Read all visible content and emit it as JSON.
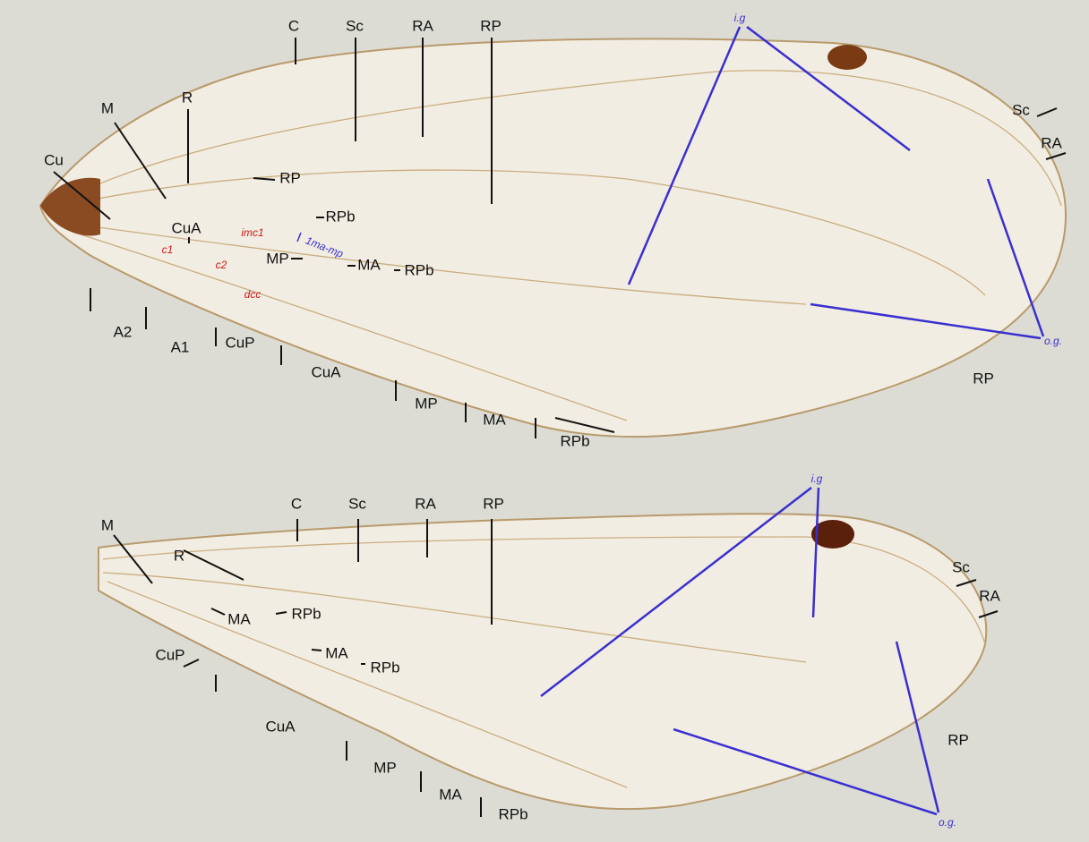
{
  "forewing": {
    "labels": [
      "C",
      "Sc",
      "RA",
      "RP",
      "i.g",
      "R",
      "M",
      "Cu",
      "RP",
      "RPb",
      "CuA",
      "imc1",
      "c1",
      "c2",
      "1ma-mp",
      "MP",
      "MA",
      "RPb",
      "dcc",
      "A2",
      "A1",
      "CuP",
      "CuA",
      "MP",
      "MA",
      "RPb",
      "Sc",
      "RA",
      "RP",
      "o.g."
    ]
  },
  "hindwing": {
    "labels": [
      "C",
      "Sc",
      "RA",
      "RP",
      "i.g",
      "M",
      "R",
      "MA",
      "RPb",
      "MA",
      "RPb",
      "CuP",
      "CuA",
      "MP",
      "MA",
      "RPb",
      "Sc",
      "RA",
      "RP",
      "o.g."
    ]
  }
}
